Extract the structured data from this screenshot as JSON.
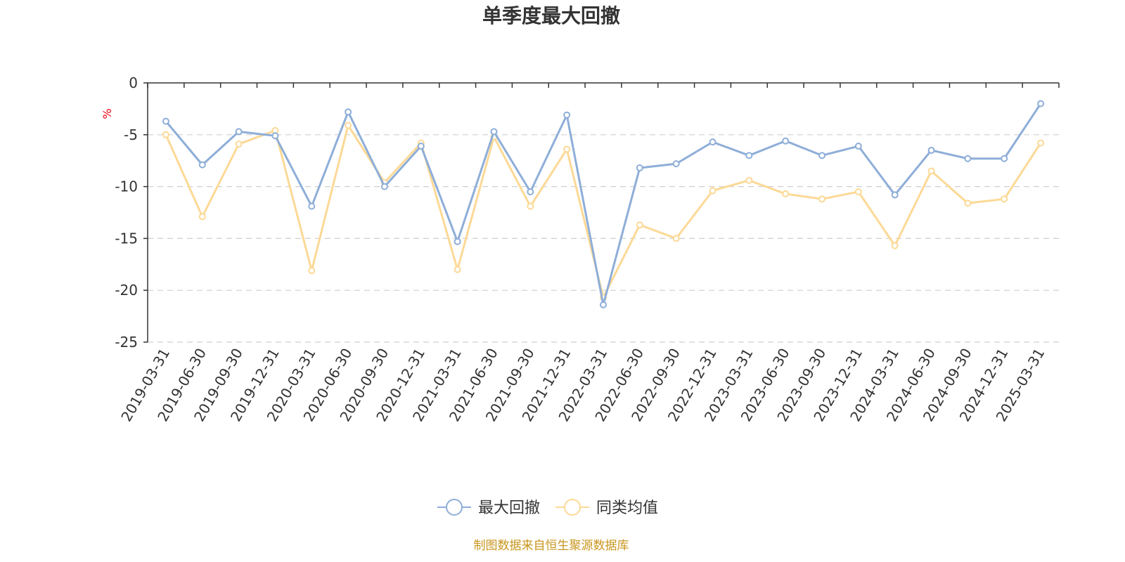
{
  "chart_data": {
    "type": "line",
    "title": "单季度最大回撤",
    "ylabel": "%",
    "xlabel": "",
    "ylim": [
      -25,
      0
    ],
    "yticks": [
      0,
      -5,
      -10,
      -15,
      -20,
      -25
    ],
    "grid": true,
    "legend_position": "bottom",
    "categories": [
      "2019-03-31",
      "2019-06-30",
      "2019-09-30",
      "2019-12-31",
      "2020-03-31",
      "2020-06-30",
      "2020-09-30",
      "2020-12-31",
      "2021-03-31",
      "2021-06-30",
      "2021-09-30",
      "2021-12-31",
      "2022-03-31",
      "2022-06-30",
      "2022-09-30",
      "2022-12-31",
      "2023-03-31",
      "2023-06-30",
      "2023-09-30",
      "2023-12-31",
      "2024-03-31",
      "2024-06-30",
      "2024-09-30",
      "2024-12-31",
      "2025-03-31"
    ],
    "series": [
      {
        "name": "最大回撤",
        "color": "#8eaed8",
        "values": [
          -3.7,
          -7.9,
          -4.7,
          -5.1,
          -11.9,
          -2.8,
          -10.0,
          -6.1,
          -15.3,
          -4.7,
          -10.5,
          -3.1,
          -21.4,
          -8.2,
          -7.8,
          -5.7,
          -7.0,
          -5.6,
          -7.0,
          -6.1,
          -10.8,
          -6.5,
          -7.3,
          -7.3,
          -2.0
        ]
      },
      {
        "name": "同类均值",
        "color": "#fcd996",
        "values": [
          -5.0,
          -12.9,
          -5.9,
          -4.6,
          -18.1,
          -4.1,
          -9.6,
          -5.8,
          -18.0,
          -5.2,
          -11.9,
          -6.4,
          -20.7,
          -13.7,
          -15.0,
          -10.4,
          -9.4,
          -10.7,
          -11.2,
          -10.5,
          -15.7,
          -8.5,
          -11.6,
          -11.2,
          -5.8
        ]
      }
    ]
  },
  "source_note": "制图数据来自恒生聚源数据库"
}
